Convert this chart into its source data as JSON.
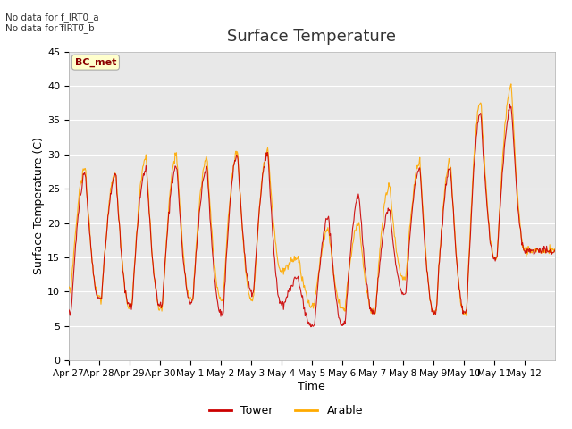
{
  "title": "Surface Temperature",
  "xlabel": "Time",
  "ylabel": "Surface Temperature (C)",
  "ylim": [
    0,
    45
  ],
  "yticks": [
    0,
    5,
    10,
    15,
    20,
    25,
    30,
    35,
    40,
    45
  ],
  "x_tick_labels": [
    "Apr 27",
    "Apr 28",
    "Apr 29",
    "Apr 30",
    "May 1",
    "May 2",
    "May 3",
    "May 4",
    "May 5",
    "May 6",
    "May 7",
    "May 8",
    "May 9",
    "May 10",
    "May 11",
    "May 12"
  ],
  "tower_color": "#cc0000",
  "arable_color": "#ffaa00",
  "plot_bg_color": "#e8e8e8",
  "annotation_text1": "No data for f_IRT0_a",
  "annotation_text2": "No data for f̅IRT0̅_b",
  "bc_met_label": "BC_met",
  "legend_labels": [
    "Tower",
    "Arable"
  ]
}
